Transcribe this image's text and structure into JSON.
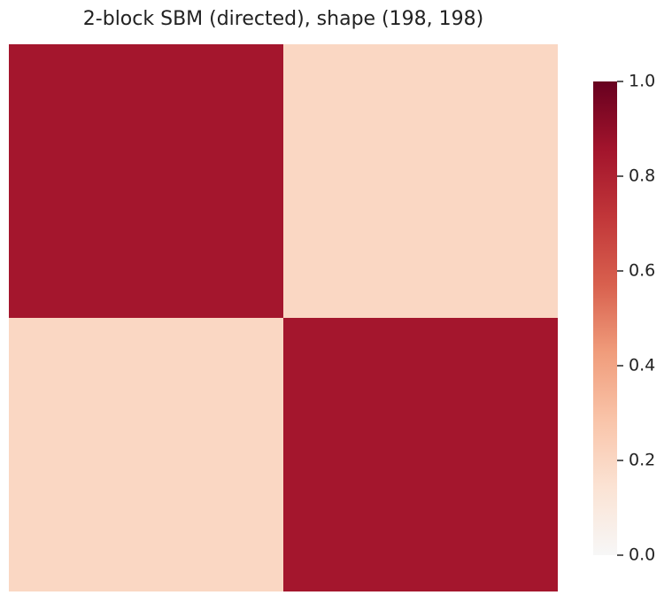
{
  "chart_data": {
    "type": "heatmap",
    "title": "2-block SBM (directed), shape (198, 198)",
    "values": [
      [
        0.85,
        0.2
      ],
      [
        0.2,
        0.85
      ]
    ],
    "colors": [
      "#f7f7f7",
      "#fbe3d4",
      "#f9c4a9",
      "#f09c7b",
      "#d8604e",
      "#c13639",
      "#a2142c",
      "#67001f"
    ],
    "clim": [
      0,
      1
    ],
    "colorbar_ticks": [
      {
        "value": 0,
        "label": "0.0"
      },
      0.2,
      0.4,
      0.6,
      0.8,
      {
        "value": 1,
        "label": "1.0"
      }
    ]
  }
}
